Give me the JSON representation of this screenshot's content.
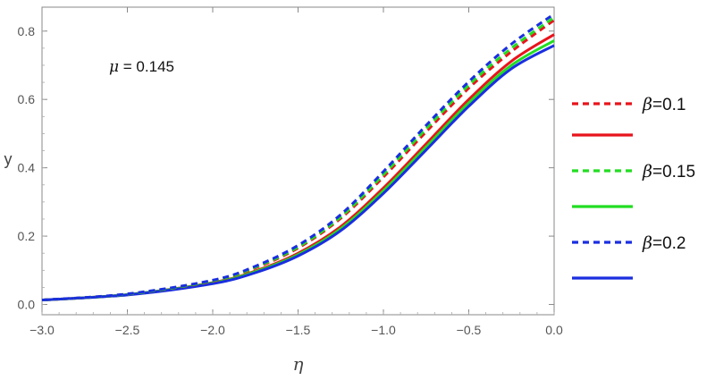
{
  "chart_data": {
    "type": "line",
    "title": "",
    "xlabel": "η",
    "ylabel": "y",
    "xlim": [
      -3.0,
      0.0
    ],
    "ylim": [
      -0.03,
      0.87
    ],
    "xticks": [
      "−3.0",
      "−2.5",
      "−2.0",
      "−1.5",
      "−1.0",
      "−0.5",
      "0.0"
    ],
    "xtick_values": [
      -3.0,
      -2.5,
      -2.0,
      -1.5,
      -1.0,
      -0.5,
      0.0
    ],
    "yticks": [
      "0.0",
      "0.2",
      "0.4",
      "0.6",
      "0.8"
    ],
    "ytick_values": [
      0.0,
      0.2,
      0.4,
      0.6,
      0.8
    ],
    "annotation": {
      "symbol": "μ",
      "text": " = 0.145"
    },
    "legend": {
      "placement": "right",
      "entries": [
        {
          "symbol": "β",
          "label": "=0.1",
          "color": "#e8141c",
          "dash": true
        },
        {
          "symbol": "",
          "label": "",
          "color": "#e8141c",
          "dash": false
        },
        {
          "symbol": "β",
          "label": "=0.15",
          "color": "#22dd22",
          "dash": true
        },
        {
          "symbol": "",
          "label": "",
          "color": "#22dd22",
          "dash": false
        },
        {
          "symbol": "β",
          "label": "=0.2",
          "color": "#1a2ee0",
          "dash": true
        },
        {
          "symbol": "",
          "label": "",
          "color": "#1a2ee0",
          "dash": false
        }
      ]
    },
    "x": [
      -3.0,
      -2.5,
      -2.0,
      -1.75,
      -1.5,
      -1.25,
      -1.0,
      -0.75,
      -0.5,
      -0.25,
      0.0
    ],
    "series": [
      {
        "color": "#e8141c",
        "dash": true,
        "values": [
          0.013,
          0.03,
          0.068,
          0.107,
          0.165,
          0.252,
          0.373,
          0.505,
          0.633,
          0.74,
          0.832
        ]
      },
      {
        "color": "#e8141c",
        "dash": false,
        "values": [
          0.013,
          0.029,
          0.064,
          0.098,
          0.15,
          0.228,
          0.341,
          0.47,
          0.6,
          0.712,
          0.79
        ]
      },
      {
        "color": "#22dd22",
        "dash": true,
        "values": [
          0.013,
          0.03,
          0.069,
          0.109,
          0.168,
          0.256,
          0.38,
          0.514,
          0.642,
          0.75,
          0.84
        ]
      },
      {
        "color": "#22dd22",
        "dash": false,
        "values": [
          0.013,
          0.029,
          0.063,
          0.096,
          0.146,
          0.222,
          0.333,
          0.461,
          0.59,
          0.7,
          0.772
        ]
      },
      {
        "color": "#1a2ee0",
        "dash": true,
        "values": [
          0.013,
          0.031,
          0.071,
          0.112,
          0.173,
          0.263,
          0.389,
          0.524,
          0.652,
          0.762,
          0.85
        ]
      },
      {
        "color": "#1a2ee0",
        "dash": false,
        "values": [
          0.013,
          0.028,
          0.061,
          0.093,
          0.142,
          0.216,
          0.325,
          0.452,
          0.58,
          0.69,
          0.758
        ]
      }
    ]
  }
}
